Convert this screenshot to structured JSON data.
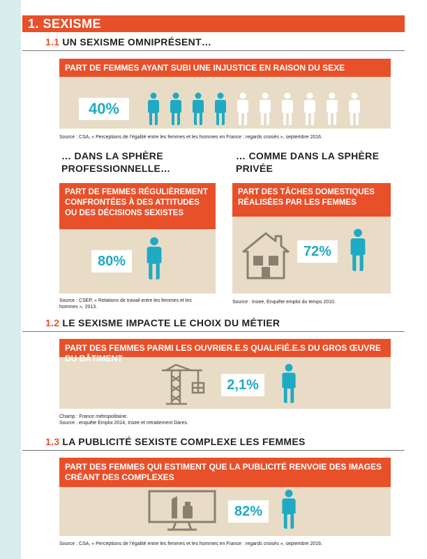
{
  "chapter": {
    "number": "1.",
    "title": "SEXISME"
  },
  "s1": {
    "number": "1.1",
    "title": "UN SEXISME OMNIPRÉSENT…",
    "panel_title": "PART DE FEMMES AYANT SUBI UNE INJUSTICE EN RAISON DU SEXE",
    "percent": "40%",
    "value": 0.4,
    "source": "Source : CSA, « Perceptions de l’égalité entre les femmes et les hommes en France : regards croisés », septembre 2016."
  },
  "pro": {
    "heading": [
      "… DANS LA SPHÈRE",
      "PROFESSIONNELLE…"
    ],
    "panel_title": [
      "PART DE FEMMES RÉGULIÈREMENT",
      "CONFRONTÉES À DES ATTITUDES",
      "OU DES DÉCISIONS SEXISTES"
    ],
    "percent": "80%",
    "source": [
      "Source : CSEP, « Relations de travail entre les femmes et les",
      "hommes », 2013."
    ]
  },
  "priv": {
    "heading": [
      "… COMME DANS LA SPHÈRE",
      "PRIVÉE"
    ],
    "panel_title": [
      "PART DES TÂCHES DOMESTIQUES",
      "RÉALISÉES PAR LES FEMMES"
    ],
    "percent": "72%",
    "source": "Source : Insee, Enquête emploi du temps 2010."
  },
  "s2": {
    "number": "1.2",
    "title": "LE SEXISME IMPACTE LE CHOIX DU MÉTIER",
    "panel_title": "PART DES FEMMES PARMI LES OUVRIER.E.S QUALIFIÉ.E.S DU GROS ŒUVRE DU BÂTIMENT",
    "percent": "2,1%",
    "source": [
      "Champ : France métropolitaine.",
      "Source : enquête Emploi 2014, Insee et retraitement Dares."
    ]
  },
  "s3": {
    "number": "1.3",
    "title": "LA PUBLICITÉ SEXISTE COMPLEXE LES FEMMES",
    "panel_title": [
      "PART DES FEMMES QUI ESTIMENT QUE LA PUBLICITÉ RENVOIE DES IMAGES",
      "CRÉANT DES COMPLEXES"
    ],
    "percent": "82%",
    "source": "Source : CSA, « Perceptions de l’égalité entre les femmes et les hommes en France : regards croisés », septembre 2016."
  },
  "colors": {
    "accent": "#e8502a",
    "teal": "#1faac4",
    "beige": "#e8dcc6",
    "icon_gray": "#8a8070"
  }
}
